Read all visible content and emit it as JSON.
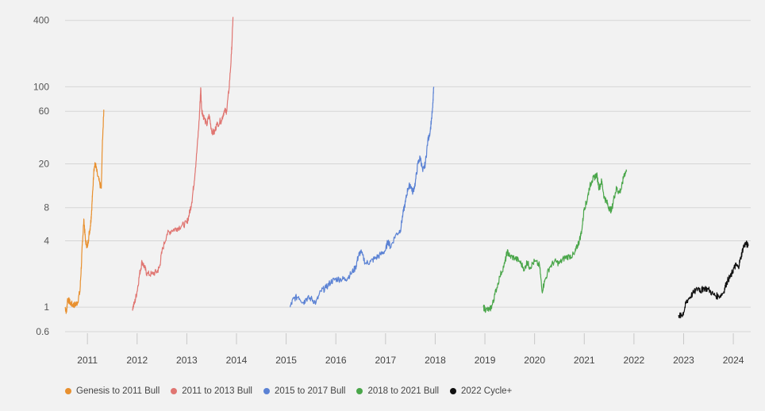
{
  "chart_data": {
    "type": "line",
    "title": "",
    "xlabel": "",
    "ylabel": "",
    "yscale": "log",
    "ylim": [
      0.6,
      440
    ],
    "xlim": [
      2010.55,
      2024.35
    ],
    "grid": "horizontal",
    "legend_position": "bottom-left",
    "y_ticks": [
      "0.6",
      "1",
      "4",
      "8",
      "20",
      "60",
      "100",
      "400"
    ],
    "x_ticks": [
      "2011",
      "2012",
      "2013",
      "2014",
      "2015",
      "2016",
      "2017",
      "2018",
      "2019",
      "2020",
      "2021",
      "2022",
      "2023",
      "2024"
    ],
    "series": [
      {
        "name": "Genesis to 2011 Bull",
        "color": "#e8902f",
        "points": [
          [
            2010.55,
            1.0
          ],
          [
            2010.58,
            0.9
          ],
          [
            2010.6,
            1.2
          ],
          [
            2010.65,
            1.1
          ],
          [
            2010.7,
            1.05
          ],
          [
            2010.75,
            1.05
          ],
          [
            2010.8,
            1.1
          ],
          [
            2010.85,
            1.4
          ],
          [
            2010.88,
            2.5
          ],
          [
            2010.9,
            4.0
          ],
          [
            2010.93,
            6.2
          ],
          [
            2010.96,
            4.0
          ],
          [
            2011.0,
            3.5
          ],
          [
            2011.03,
            4.5
          ],
          [
            2011.06,
            5.5
          ],
          [
            2011.08,
            7.0
          ],
          [
            2011.1,
            10.0
          ],
          [
            2011.13,
            18.0
          ],
          [
            2011.16,
            20.0
          ],
          [
            2011.2,
            16.0
          ],
          [
            2011.25,
            13.0
          ],
          [
            2011.28,
            12.0
          ],
          [
            2011.3,
            30.0
          ],
          [
            2011.33,
            62.0
          ]
        ]
      },
      {
        "name": "2011 to 2013 Bull",
        "color": "#e07672",
        "points": [
          [
            2011.9,
            0.95
          ],
          [
            2011.95,
            1.1
          ],
          [
            2012.0,
            1.4
          ],
          [
            2012.05,
            2.0
          ],
          [
            2012.1,
            2.6
          ],
          [
            2012.15,
            2.3
          ],
          [
            2012.2,
            2.0
          ],
          [
            2012.3,
            2.0
          ],
          [
            2012.4,
            2.1
          ],
          [
            2012.45,
            2.3
          ],
          [
            2012.5,
            3.2
          ],
          [
            2012.6,
            4.6
          ],
          [
            2012.7,
            5.0
          ],
          [
            2012.8,
            5.2
          ],
          [
            2012.9,
            5.5
          ],
          [
            2013.0,
            5.8
          ],
          [
            2013.05,
            7.0
          ],
          [
            2013.1,
            9.0
          ],
          [
            2013.15,
            14.0
          ],
          [
            2013.2,
            25.0
          ],
          [
            2013.25,
            50.0
          ],
          [
            2013.28,
            98.0
          ],
          [
            2013.3,
            62.0
          ],
          [
            2013.33,
            55.0
          ],
          [
            2013.4,
            45.0
          ],
          [
            2013.45,
            55.0
          ],
          [
            2013.5,
            40.0
          ],
          [
            2013.55,
            38.0
          ],
          [
            2013.6,
            45.0
          ],
          [
            2013.7,
            50.0
          ],
          [
            2013.75,
            60.0
          ],
          [
            2013.8,
            60.0
          ],
          [
            2013.85,
            95.0
          ],
          [
            2013.9,
            200.0
          ],
          [
            2013.93,
            430.0
          ]
        ]
      },
      {
        "name": "2015 to 2017 Bull",
        "color": "#5b82d4",
        "points": [
          [
            2015.08,
            1.0
          ],
          [
            2015.15,
            1.2
          ],
          [
            2015.25,
            1.25
          ],
          [
            2015.35,
            1.1
          ],
          [
            2015.4,
            1.2
          ],
          [
            2015.5,
            1.2
          ],
          [
            2015.6,
            1.1
          ],
          [
            2015.7,
            1.4
          ],
          [
            2015.8,
            1.5
          ],
          [
            2015.9,
            1.7
          ],
          [
            2016.0,
            1.8
          ],
          [
            2016.1,
            1.8
          ],
          [
            2016.2,
            1.8
          ],
          [
            2016.3,
            2.0
          ],
          [
            2016.4,
            2.3
          ],
          [
            2016.45,
            2.9
          ],
          [
            2016.5,
            3.2
          ],
          [
            2016.6,
            2.5
          ],
          [
            2016.7,
            2.6
          ],
          [
            2016.8,
            2.8
          ],
          [
            2016.9,
            3.0
          ],
          [
            2017.0,
            3.3
          ],
          [
            2017.05,
            4.0
          ],
          [
            2017.1,
            3.5
          ],
          [
            2017.2,
            4.5
          ],
          [
            2017.3,
            5.0
          ],
          [
            2017.35,
            7.0
          ],
          [
            2017.4,
            9.0
          ],
          [
            2017.45,
            12.0
          ],
          [
            2017.5,
            13.0
          ],
          [
            2017.55,
            11.0
          ],
          [
            2017.6,
            13.5
          ],
          [
            2017.65,
            20.0
          ],
          [
            2017.7,
            23.0
          ],
          [
            2017.75,
            17.0
          ],
          [
            2017.8,
            20.0
          ],
          [
            2017.85,
            32.0
          ],
          [
            2017.9,
            40.0
          ],
          [
            2017.95,
            65.0
          ],
          [
            2017.97,
            100.0
          ]
        ]
      },
      {
        "name": "2018 to 2021 Bull",
        "color": "#4aa64a",
        "points": [
          [
            2018.97,
            1.0
          ],
          [
            2019.02,
            0.95
          ],
          [
            2019.1,
            0.95
          ],
          [
            2019.15,
            1.05
          ],
          [
            2019.2,
            1.3
          ],
          [
            2019.3,
            1.9
          ],
          [
            2019.4,
            2.5
          ],
          [
            2019.45,
            3.2
          ],
          [
            2019.5,
            2.9
          ],
          [
            2019.6,
            2.8
          ],
          [
            2019.7,
            2.6
          ],
          [
            2019.8,
            2.2
          ],
          [
            2019.85,
            2.6
          ],
          [
            2019.9,
            2.3
          ],
          [
            2020.0,
            2.6
          ],
          [
            2020.1,
            2.4
          ],
          [
            2020.15,
            1.4
          ],
          [
            2020.2,
            1.7
          ],
          [
            2020.3,
            2.3
          ],
          [
            2020.4,
            2.6
          ],
          [
            2020.5,
            2.5
          ],
          [
            2020.6,
            2.8
          ],
          [
            2020.7,
            2.9
          ],
          [
            2020.8,
            3.0
          ],
          [
            2020.85,
            3.5
          ],
          [
            2020.9,
            4.0
          ],
          [
            2020.95,
            5.0
          ],
          [
            2021.0,
            8.0
          ],
          [
            2021.05,
            9.0
          ],
          [
            2021.1,
            12.0
          ],
          [
            2021.15,
            14.0
          ],
          [
            2021.2,
            15.0
          ],
          [
            2021.25,
            16.0
          ],
          [
            2021.3,
            12.0
          ],
          [
            2021.35,
            14.0
          ],
          [
            2021.4,
            10.0
          ],
          [
            2021.45,
            9.0
          ],
          [
            2021.5,
            8.0
          ],
          [
            2021.55,
            7.5
          ],
          [
            2021.6,
            10.0
          ],
          [
            2021.65,
            12.0
          ],
          [
            2021.7,
            11.0
          ],
          [
            2021.75,
            12.0
          ],
          [
            2021.8,
            16.0
          ],
          [
            2021.85,
            17.0
          ]
        ]
      },
      {
        "name": "2022 Cycle+",
        "color": "#111111",
        "points": [
          [
            2022.9,
            0.85
          ],
          [
            2022.95,
            0.83
          ],
          [
            2023.0,
            0.9
          ],
          [
            2023.05,
            1.1
          ],
          [
            2023.1,
            1.2
          ],
          [
            2023.2,
            1.35
          ],
          [
            2023.3,
            1.5
          ],
          [
            2023.35,
            1.4
          ],
          [
            2023.4,
            1.5
          ],
          [
            2023.5,
            1.45
          ],
          [
            2023.6,
            1.3
          ],
          [
            2023.7,
            1.25
          ],
          [
            2023.8,
            1.35
          ],
          [
            2023.85,
            1.6
          ],
          [
            2023.9,
            1.8
          ],
          [
            2023.95,
            1.9
          ],
          [
            2024.0,
            2.2
          ],
          [
            2024.05,
            2.4
          ],
          [
            2024.1,
            2.3
          ],
          [
            2024.15,
            2.8
          ],
          [
            2024.2,
            3.5
          ],
          [
            2024.25,
            3.8
          ],
          [
            2024.3,
            3.6
          ]
        ]
      }
    ]
  }
}
